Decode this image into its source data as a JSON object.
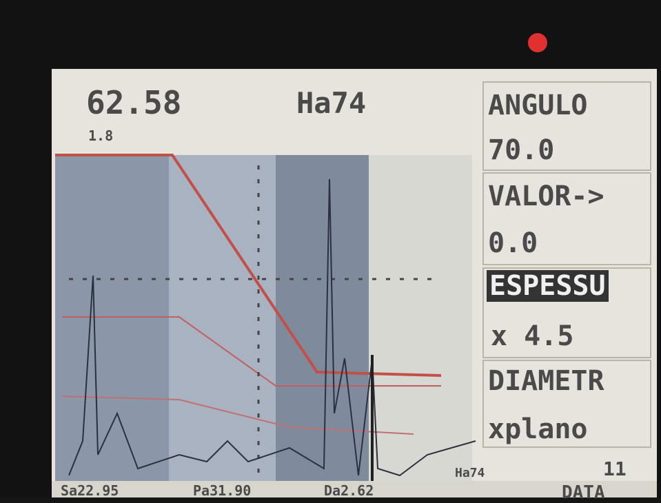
{
  "readout": {
    "sound_path": "62.58",
    "amplitude": "Ha74",
    "gate_label": "1.8"
  },
  "menu": [
    {
      "label": "ANGULO",
      "value": "70.0"
    },
    {
      "label": "VALOR->",
      "value": "0.0"
    },
    {
      "label": "ESPESSU",
      "value": "x 4.5"
    },
    {
      "label": "DIAMETR",
      "value": "xplano"
    }
  ],
  "status_bar": {
    "surface": "Sa22.95",
    "projection": "Pa31.90",
    "depth": "Da2.62",
    "amplitude": "Ha74",
    "page": "11",
    "tab": "DATA"
  }
}
